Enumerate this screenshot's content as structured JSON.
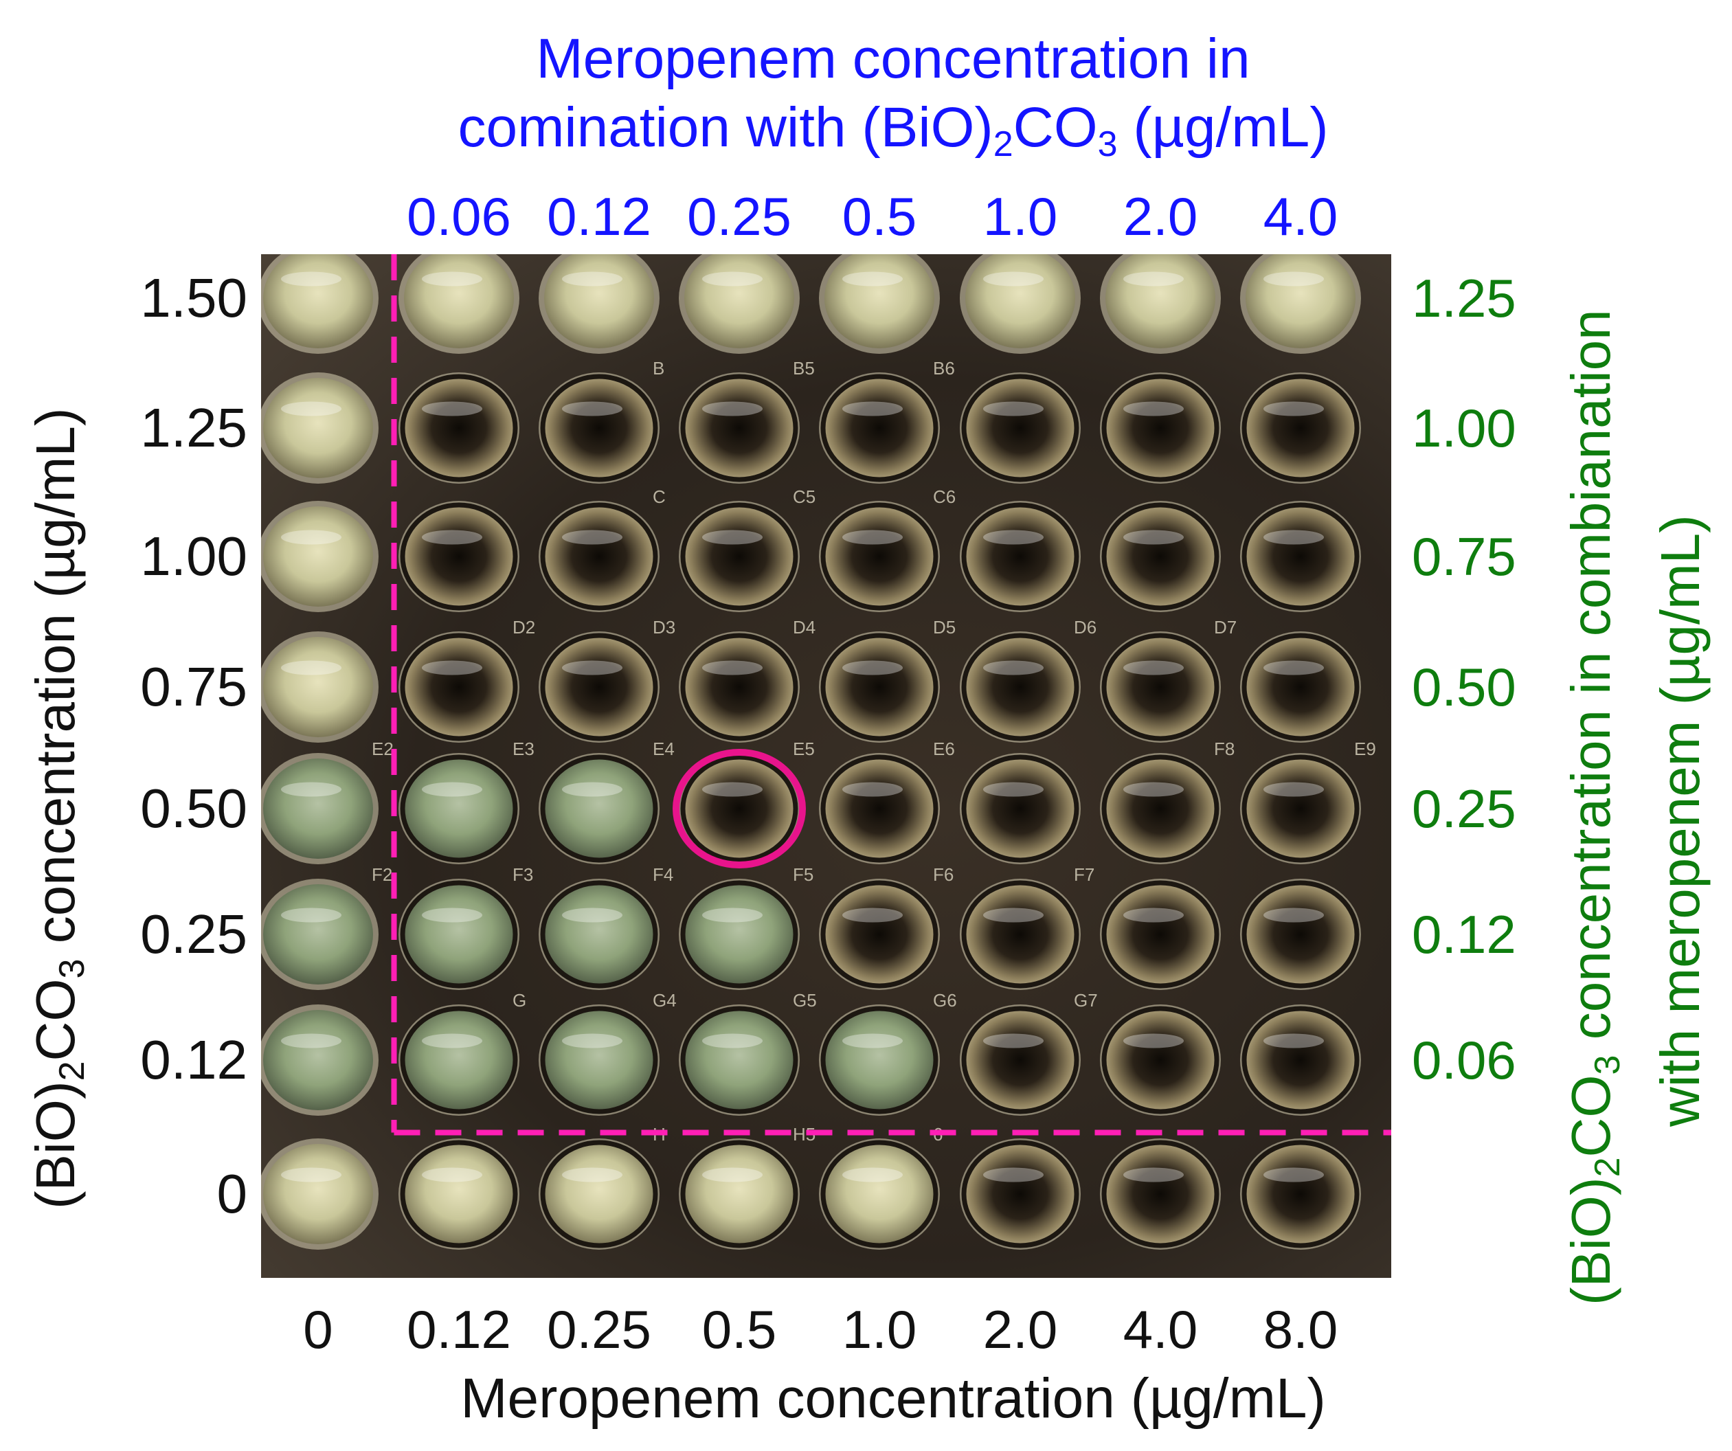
{
  "top_title": {
    "line1": "Meropenem concentration in",
    "line2_prefix": "comination with (BiO)",
    "line2_sub1": "2",
    "line2_mid": "CO",
    "line2_sub2": "3",
    "line2_suffix": " (µg/mL)"
  },
  "top_ticks": [
    "0.06",
    "0.12",
    "0.25",
    "0.5",
    "1.0",
    "2.0",
    "4.0"
  ],
  "left_title": {
    "prefix": "(BiO)",
    "sub1": "2",
    "mid": "CO",
    "sub2": "3",
    "suffix": " concentration (µg/mL)"
  },
  "left_ticks": [
    "1.50",
    "1.25",
    "1.00",
    "0.75",
    "0.50",
    "0.25",
    "0.12",
    "0"
  ],
  "right_title": {
    "line1_prefix": "(BiO)",
    "line1_sub1": "2",
    "line1_mid": "CO",
    "line1_sub2": "3",
    "line1_suffix": " concentration in combianation",
    "line2": "with meropenem (µg/mL)"
  },
  "right_ticks": [
    "1.25",
    "1.00",
    "0.75",
    "0.50",
    "0.25",
    "0.12",
    "0.06"
  ],
  "bottom_ticks": [
    "0",
    "0.12",
    "0.25",
    "0.5",
    "1.0",
    "2.0",
    "4.0",
    "8.0"
  ],
  "bottom_title": "Meropenem concentration (µg/mL)",
  "plate": {
    "rows": 8,
    "cols": 8,
    "well_labels": [
      [
        "",
        "",
        "",
        "",
        "",
        "",
        "",
        ""
      ],
      [
        "",
        "",
        "B",
        "B5",
        "B6",
        "",
        "",
        ""
      ],
      [
        "",
        "",
        "C",
        "C5",
        "C6",
        "",
        "",
        ""
      ],
      [
        "",
        "D2",
        "D3",
        "D4",
        "D5",
        "D6",
        "D7",
        ""
      ],
      [
        "E2",
        "E3",
        "E4",
        "E5",
        "E6",
        "",
        "F8",
        "E9"
      ],
      [
        "F2",
        "F3",
        "F4",
        "F5",
        "F6",
        "F7",
        "",
        ""
      ],
      [
        "",
        "G",
        "G4",
        "G5",
        "G6",
        "G7",
        "",
        ""
      ],
      [
        "",
        "",
        "H",
        "H5",
        "6",
        "",
        "",
        ""
      ]
    ],
    "turbid_wells": [
      [
        0,
        0,
        0,
        0,
        0,
        0,
        0,
        0
      ],
      [
        0,
        1,
        1,
        1,
        1,
        1,
        1,
        1
      ],
      [
        0,
        1,
        1,
        1,
        1,
        1,
        1,
        1
      ],
      [
        0,
        1,
        1,
        1,
        1,
        1,
        1,
        1
      ],
      [
        0,
        0,
        0,
        1,
        1,
        1,
        1,
        1
      ],
      [
        0,
        0,
        0,
        0,
        1,
        1,
        1,
        1
      ],
      [
        0,
        0,
        0,
        0,
        0,
        1,
        1,
        1
      ],
      [
        0,
        0,
        0,
        0,
        0,
        1,
        1,
        1
      ]
    ],
    "highlight_well": {
      "row": 4,
      "col": 3
    },
    "colors": {
      "clear_well": "#c9c79a",
      "green_well": "#8fa37a",
      "turbid_well": "#2a2218",
      "ring": "#1c1711",
      "dashed_line": "#ff1fb5",
      "highlight_circle": "#e8148c"
    }
  }
}
